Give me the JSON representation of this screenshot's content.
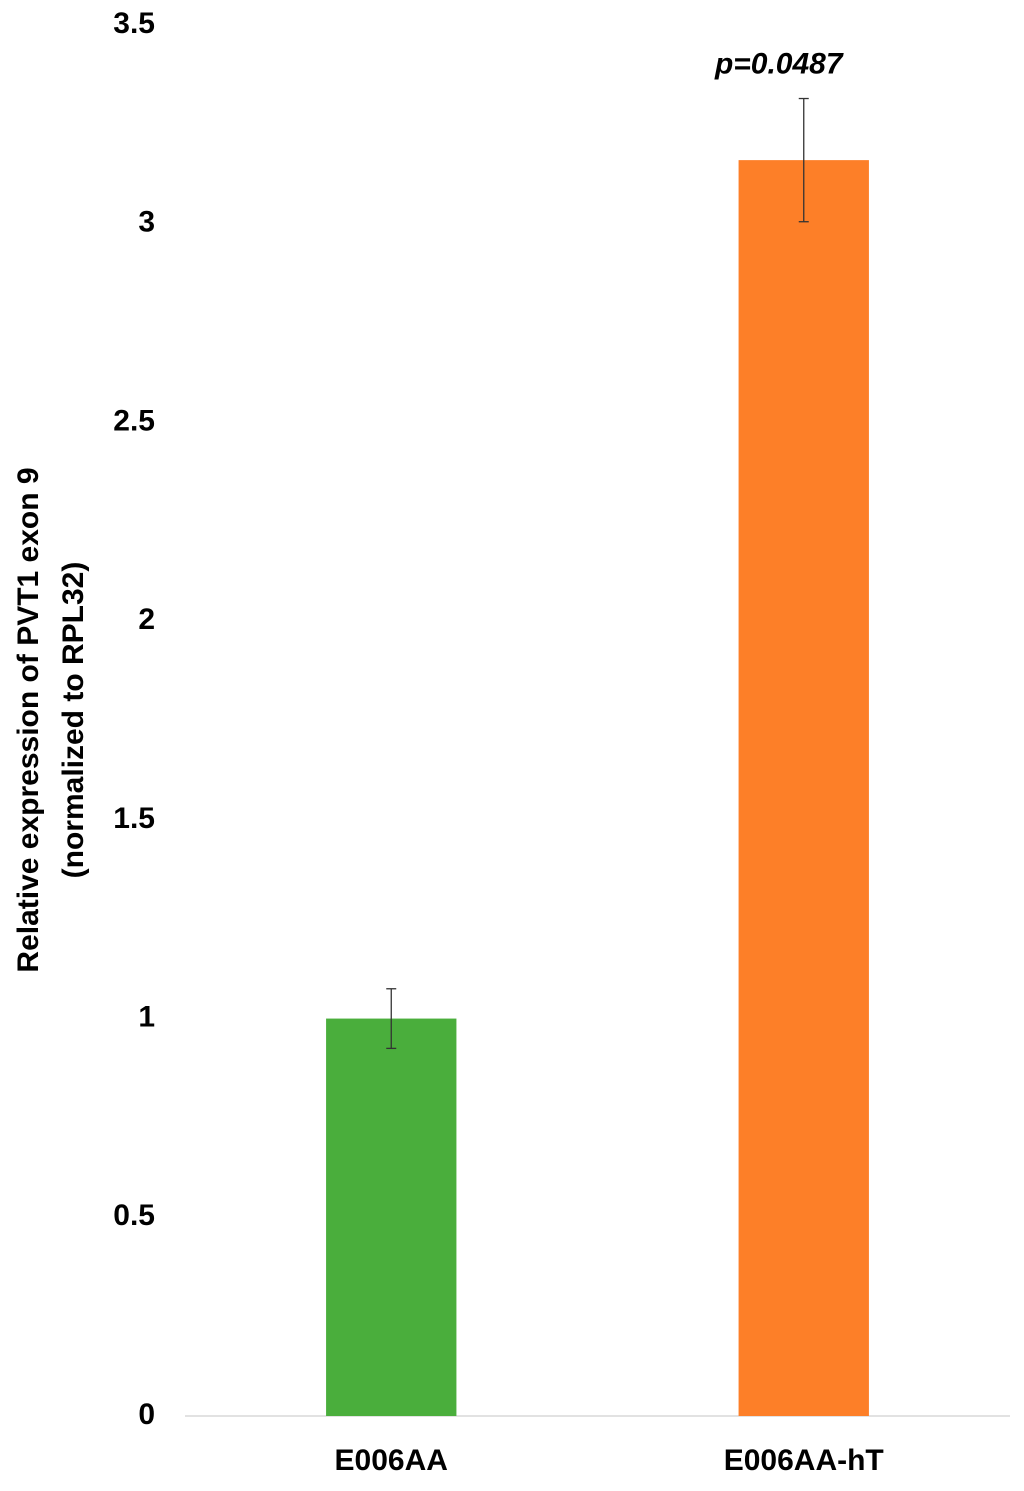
{
  "chart_data": {
    "type": "bar",
    "y_label": [
      "Relative expression of PVT1 exon 9",
      "(normalized to RPL32)"
    ],
    "categories": [
      "E006AA",
      "E006AA-hT"
    ],
    "values": [
      1.0,
      3.16
    ],
    "errors": [
      0.075,
      0.155
    ],
    "colors": [
      "#4aae3c",
      "#fd7f28"
    ],
    "annotation": "p=0.0487",
    "ylim": [
      0,
      3.5
    ],
    "yticks": [
      0,
      0.5,
      1,
      1.5,
      2,
      2.5,
      3,
      3.5
    ],
    "grid": false
  }
}
